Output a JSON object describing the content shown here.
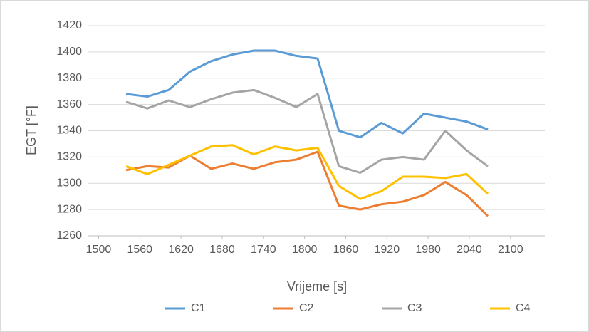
{
  "chart_data": {
    "type": "line",
    "xlabel": "Vrijeme [s]",
    "ylabel": "EGT [°F]",
    "x": [
      1540,
      1571,
      1602,
      1633,
      1664,
      1695,
      1726,
      1757,
      1788,
      1819,
      1850,
      1881,
      1912,
      1943,
      1974,
      2005,
      2036,
      2067
    ],
    "series": [
      {
        "name": "C1",
        "color": "#5b9bd5",
        "values": [
          1368,
          1366,
          1371,
          1385,
          1393,
          1398,
          1401,
          1401,
          1397,
          1395,
          1340,
          1335,
          1346,
          1338,
          1353,
          1350,
          1347,
          1341
        ]
      },
      {
        "name": "C2",
        "color": "#ed7d31",
        "values": [
          1310,
          1313,
          1312,
          1321,
          1311,
          1315,
          1311,
          1316,
          1318,
          1324,
          1283,
          1280,
          1284,
          1286,
          1291,
          1301,
          1291,
          1275
        ]
      },
      {
        "name": "C3",
        "color": "#a5a5a5",
        "values": [
          1362,
          1357,
          1363,
          1358,
          1364,
          1369,
          1371,
          1365,
          1358,
          1368,
          1313,
          1308,
          1318,
          1320,
          1318,
          1340,
          1325,
          1313
        ]
      },
      {
        "name": "C4",
        "color": "#ffc000",
        "values": [
          1313,
          1307,
          1314,
          1321,
          1328,
          1329,
          1322,
          1328,
          1325,
          1327,
          1298,
          1288,
          1294,
          1305,
          1305,
          1304,
          1307,
          1292
        ]
      }
    ],
    "xlim": [
      1485,
      2150
    ],
    "ylim": [
      1260,
      1420
    ],
    "xticks": [
      1500,
      1560,
      1620,
      1680,
      1740,
      1800,
      1860,
      1920,
      1980,
      2040,
      2100
    ],
    "yticks": [
      1260,
      1280,
      1300,
      1320,
      1340,
      1360,
      1380,
      1400,
      1420
    ],
    "grid": true,
    "legend": "bottom"
  }
}
